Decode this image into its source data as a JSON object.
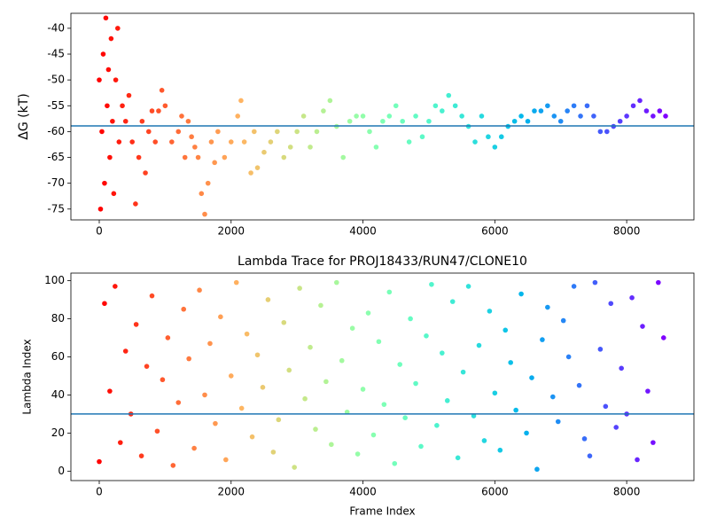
{
  "chart_data": [
    {
      "type": "scatter",
      "ylabel": "ΔG (kT)",
      "colormap": "rainbow_r",
      "hline": -58.9,
      "hline_color": "#1f77b4",
      "xlim": [
        -430,
        9020
      ],
      "ylim": [
        -77.1,
        -37.1
      ],
      "xticks": [
        0,
        2000,
        4000,
        6000,
        8000
      ],
      "yticks": [
        -75,
        -70,
        -65,
        -60,
        -55,
        -50,
        -45,
        -40
      ],
      "x": [
        0,
        20,
        40,
        60,
        80,
        100,
        120,
        140,
        160,
        180,
        200,
        220,
        250,
        280,
        300,
        350,
        400,
        450,
        500,
        550,
        600,
        650,
        700,
        750,
        800,
        850,
        900,
        950,
        1000,
        1100,
        1200,
        1250,
        1300,
        1350,
        1400,
        1450,
        1500,
        1550,
        1600,
        1650,
        1700,
        1750,
        1800,
        1900,
        2000,
        2100,
        2150,
        2200,
        2300,
        2350,
        2400,
        2500,
        2600,
        2700,
        2800,
        2900,
        3000,
        3100,
        3200,
        3300,
        3400,
        3500,
        3600,
        3700,
        3800,
        3900,
        4000,
        4100,
        4200,
        4300,
        4400,
        4500,
        4600,
        4700,
        4800,
        4900,
        5000,
        5100,
        5200,
        5300,
        5400,
        5500,
        5600,
        5700,
        5800,
        5900,
        6000,
        6100,
        6200,
        6300,
        6400,
        6500,
        6600,
        6700,
        6800,
        6900,
        7000,
        7100,
        7200,
        7300,
        7400,
        7500,
        7600,
        7700,
        7800,
        7900,
        8000,
        8100,
        8200,
        8300,
        8400,
        8500,
        8590
      ],
      "values": [
        -50,
        -75,
        -60,
        -45,
        -70,
        -38,
        -55,
        -48,
        -65,
        -42,
        -58,
        -72,
        -50,
        -40,
        -62,
        -55,
        -58,
        -53,
        -62,
        -74,
        -65,
        -58,
        -68,
        -60,
        -56,
        -62,
        -56,
        -52,
        -55,
        -62,
        -60,
        -57,
        -65,
        -58,
        -61,
        -63,
        -65,
        -72,
        -76,
        -70,
        -62,
        -66,
        -60,
        -65,
        -62,
        -57,
        -54,
        -62,
        -68,
        -60,
        -67,
        -64,
        -62,
        -60,
        -65,
        -63,
        -60,
        -57,
        -63,
        -60,
        -56,
        -54,
        -59,
        -65,
        -58,
        -57,
        -57,
        -60,
        -63,
        -58,
        -57,
        -55,
        -58,
        -62,
        -57,
        -61,
        -58,
        -55,
        -56,
        -53,
        -55,
        -57,
        -59,
        -62,
        -57,
        -61,
        -63,
        -61,
        -59,
        -58,
        -57,
        -58,
        -56,
        -56,
        -55,
        -57,
        -58,
        -56,
        -55,
        -57,
        -55,
        -57,
        -60,
        -60,
        -59,
        -58,
        -57,
        -55,
        -54,
        -56,
        -57,
        -56,
        -57
      ]
    },
    {
      "type": "scatter",
      "title": "Lambda Trace for PROJ18433/RUN47/CLONE10",
      "xlabel": "Frame Index",
      "ylabel": "Lambda Index",
      "colormap": "rainbow_r",
      "hline": 30,
      "hline_color": "#1f77b4",
      "xlim": [
        -430,
        9020
      ],
      "ylim": [
        -4.95,
        103.95
      ],
      "xticks": [
        0,
        2000,
        4000,
        6000,
        8000
      ],
      "yticks": [
        0,
        20,
        40,
        60,
        80,
        100
      ],
      "x": [
        0,
        80,
        160,
        240,
        320,
        400,
        480,
        560,
        640,
        720,
        800,
        880,
        960,
        1040,
        1120,
        1200,
        1280,
        1360,
        1440,
        1520,
        1600,
        1680,
        1760,
        1840,
        1920,
        2000,
        2080,
        2160,
        2240,
        2320,
        2400,
        2480,
        2560,
        2640,
        2720,
        2800,
        2880,
        2960,
        3040,
        3120,
        3200,
        3280,
        3360,
        3440,
        3520,
        3600,
        3680,
        3760,
        3840,
        3920,
        4000,
        4080,
        4160,
        4240,
        4320,
        4400,
        4480,
        4560,
        4640,
        4720,
        4800,
        4880,
        4960,
        5040,
        5120,
        5200,
        5280,
        5360,
        5440,
        5520,
        5600,
        5680,
        5760,
        5840,
        5920,
        6000,
        6080,
        6160,
        6240,
        6320,
        6400,
        6480,
        6560,
        6640,
        6720,
        6800,
        6880,
        6960,
        7040,
        7120,
        7200,
        7280,
        7360,
        7440,
        7520,
        7600,
        7680,
        7760,
        7840,
        7920,
        8000,
        8080,
        8160,
        8240,
        8320,
        8400,
        8480,
        8560
      ],
      "values": [
        5,
        88,
        42,
        97,
        15,
        63,
        30,
        77,
        8,
        55,
        92,
        21,
        48,
        70,
        3,
        36,
        85,
        59,
        12,
        95,
        40,
        67,
        25,
        81,
        6,
        50,
        99,
        33,
        72,
        18,
        61,
        44,
        90,
        10,
        27,
        78,
        53,
        2,
        96,
        38,
        65,
        22,
        87,
        47,
        14,
        99,
        58,
        31,
        75,
        9,
        43,
        83,
        19,
        68,
        35,
        94,
        4,
        56,
        28,
        80,
        46,
        13,
        71,
        98,
        24,
        62,
        37,
        89,
        7,
        52,
        97,
        29,
        66,
        16,
        84,
        41,
        11,
        74,
        57,
        32,
        93,
        20,
        49,
        1,
        69,
        86,
        39,
        26,
        79,
        60,
        97,
        45,
        17,
        8,
        99,
        64,
        34,
        88,
        23,
        54,
        30,
        91,
        6,
        76,
        42,
        15,
        99,
        70
      ]
    }
  ]
}
